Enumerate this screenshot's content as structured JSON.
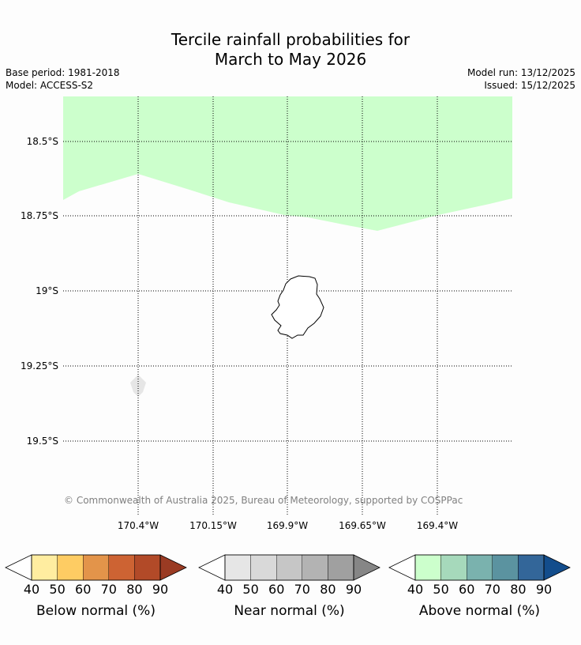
{
  "header": {
    "title_line1": "Tercile rainfall probabilities for",
    "title_line2": "March to May 2026",
    "base_period": "Base period: 1981-2018",
    "model": "Model: ACCESS-S2",
    "model_run": "Model run: 13/12/2025",
    "issued": "Issued: 15/12/2025"
  },
  "map": {
    "lat_labels": [
      "18.5°S",
      "18.75°S",
      "19°S",
      "19.25°S",
      "19.5°S"
    ],
    "lon_labels": [
      "170.4°W",
      "170.15°W",
      "169.9°W",
      "169.65°W",
      "169.4°W"
    ],
    "copyright": "© Commonwealth of Australia 2025, Bureau of Meteorology, supported by COSPPac",
    "regions": [
      {
        "category": "above_normal",
        "bin": "40-50"
      },
      {
        "category": "near_normal",
        "bin": "40-50"
      }
    ]
  },
  "legends": [
    {
      "label": "Below normal (%)",
      "ticks": [
        "40",
        "50",
        "60",
        "70",
        "80",
        "90"
      ],
      "colors": [
        "#ffeda0",
        "#fecc63",
        "#e3944a",
        "#cd6333",
        "#b24a28",
        "#9a3b23"
      ],
      "under_color": "#ffffff"
    },
    {
      "label": "Near normal (%)",
      "ticks": [
        "40",
        "50",
        "60",
        "70",
        "80",
        "90"
      ],
      "colors": [
        "#e6e6e6",
        "#d9d9d9",
        "#c6c6c6",
        "#b3b3b3",
        "#a0a0a0",
        "#868686"
      ],
      "under_color": "#ffffff"
    },
    {
      "label": "Above normal (%)",
      "ticks": [
        "40",
        "50",
        "60",
        "70",
        "80",
        "90"
      ],
      "colors": [
        "#ccffcc",
        "#a6d9bb",
        "#7ab2ae",
        "#5b93a0",
        "#336699",
        "#134d8c"
      ],
      "under_color": "#ffffff"
    }
  ],
  "colors": {
    "above_normal_40_50": "#ccffcc",
    "near_normal_40_50": "#e6e6e6",
    "grid": "#000000",
    "copyright_text": "#808080"
  }
}
